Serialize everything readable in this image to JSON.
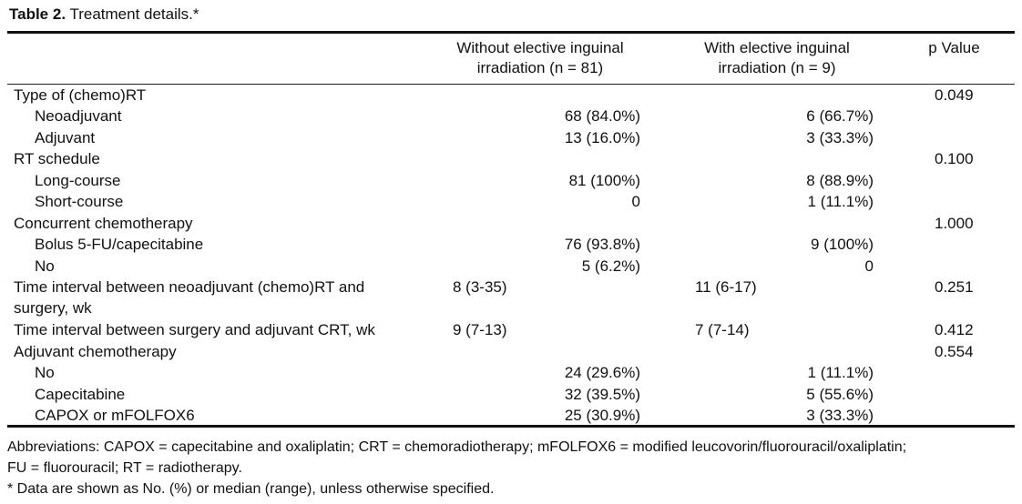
{
  "caption": {
    "label": "Table 2.",
    "text": " Treatment details.*"
  },
  "headers": {
    "without_line1": "Without elective inguinal",
    "without_line2": "irradiation (n = 81)",
    "with_line1": "With elective inguinal",
    "with_line2": "irradiation (n = 9)",
    "pvalue": "p Value"
  },
  "rows": [
    {
      "label": "Type of (chemo)RT",
      "without": "",
      "with": "",
      "p": "0.049"
    },
    {
      "label": "Neoadjuvant",
      "without": "68 (84.0%)",
      "with": "6 (66.7%)",
      "p": ""
    },
    {
      "label": "Adjuvant",
      "without": "13 (16.0%)",
      "with": "3 (33.3%)",
      "p": ""
    },
    {
      "label": "RT schedule",
      "without": "",
      "with": "",
      "p": "0.100"
    },
    {
      "label": "Long-course",
      "without": "81 (100%)",
      "with": "8 (88.9%)",
      "p": ""
    },
    {
      "label": "Short-course",
      "without": "0",
      "with": "1 (11.1%)",
      "p": ""
    },
    {
      "label": "Concurrent chemotherapy",
      "without": "",
      "with": "",
      "p": "1.000"
    },
    {
      "label": "Bolus 5-FU/capecitabine",
      "without": "76 (93.8%)",
      "with": "9 (100%)",
      "p": ""
    },
    {
      "label": "No",
      "without": "5 (6.2%)",
      "with": "0",
      "p": ""
    },
    {
      "label": "Time interval between neoadjuvant (chemo)RT and",
      "label2": "surgery, wk",
      "without": "8 (3-35)",
      "with": "11 (6-17)",
      "p": "0.251"
    },
    {
      "label": "Time interval between surgery and adjuvant CRT, wk",
      "without": "9 (7-13)",
      "with": "7 (7-14)",
      "p": "0.412"
    },
    {
      "label": "Adjuvant chemotherapy",
      "without": "",
      "with": "",
      "p": "0.554"
    },
    {
      "label": "No",
      "without": "24 (29.6%)",
      "with": "1 (11.1%)",
      "p": ""
    },
    {
      "label": "Capecitabine",
      "without": "32 (39.5%)",
      "with": "5 (55.6%)",
      "p": ""
    },
    {
      "label": "CAPOX or mFOLFOX6",
      "without": "25 (30.9%)",
      "with": "3 (33.3%)",
      "p": ""
    }
  ],
  "footnotes": {
    "abbrev_line1": "Abbreviations: CAPOX = capecitabine and oxaliplatin; CRT = chemoradiotherapy; mFOLFOX6 = modified leucovorin/fluorouracil/oxaliplatin;",
    "abbrev_line2": "FU = fluorouracil; RT = radiotherapy.",
    "note": "* Data are shown as No. (%) or median (range), unless otherwise specified."
  }
}
